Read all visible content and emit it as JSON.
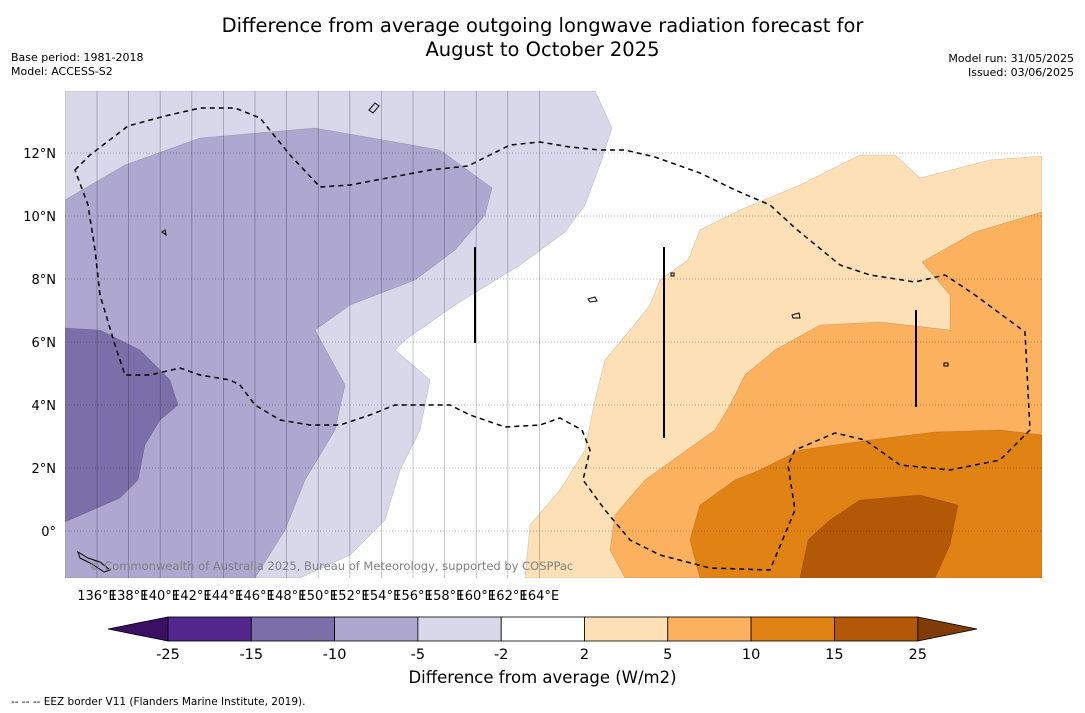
{
  "title_line1": "Difference from average outgoing longwave radiation forecast for",
  "title_line2": "August to October 2025",
  "base_period": "Base period: 1981-2018",
  "model": "Model: ACCESS-S2",
  "model_run": "Model run: 31/05/2025",
  "issued": "Issued: 03/06/2025",
  "copyright": "© Commonwealth of Australia 2025, Bureau of Meteorology, supported by COSPPac",
  "longitude_labels": [
    "136°E",
    "138°E",
    "140°E",
    "142°E",
    "144°E",
    "146°E",
    "148°E",
    "150°E",
    "152°E",
    "154°E",
    "156°E",
    "158°E",
    "160°E",
    "162°E",
    "164°E"
  ],
  "latitude_labels": [
    "12°N",
    "10°N",
    "8°N",
    "6°N",
    "4°N",
    "2°N",
    "0°"
  ],
  "colorbar": {
    "label": "Difference from average (W/m2)",
    "ticks": [
      "-25",
      "-15",
      "-10",
      "-5",
      "-2",
      "2",
      "5",
      "10",
      "15",
      "25"
    ],
    "colors": {
      "below": "#3b0f63",
      "n25_n15": "#54278f",
      "n15_n10": "#7b6faa",
      "n10_n5": "#aea8d1",
      "n5_n2": "#d8d8ea",
      "n2_2": "#ffffff",
      "p2_5": "#fee0b6",
      "p5_10": "#fbb15e",
      "p10_15": "#e08214",
      "p15_25": "#b35806",
      "above": "#7f3b08"
    }
  },
  "footnote": "--  --  -- EEZ border V11 (Flanders Marine Institute, 2019)."
}
